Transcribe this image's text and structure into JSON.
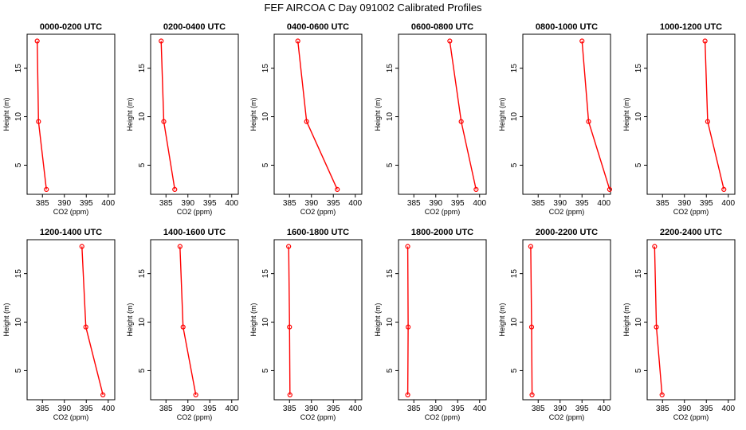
{
  "title": "FEF AIRCOA C  Day 091002  Calibrated Profiles",
  "chart_data": [
    {
      "type": "line",
      "title": "0000-0200 UTC",
      "xlabel": "CO2 (ppm)",
      "ylabel": "Height (m)",
      "xlim": [
        381.5,
        401.5
      ],
      "ylim": [
        2,
        18.5
      ],
      "xticks": [
        385,
        390,
        395,
        400
      ],
      "yticks": [
        5,
        10,
        15
      ],
      "series": [
        {
          "name": "profile",
          "x": [
            383.8,
            384.1,
            385.9
          ],
          "y": [
            17.8,
            9.5,
            2.5
          ]
        }
      ]
    },
    {
      "type": "line",
      "title": "0200-0400 UTC",
      "xlabel": "CO2 (ppm)",
      "ylabel": "Height (m)",
      "xlim": [
        381.5,
        401.5
      ],
      "ylim": [
        2,
        18.5
      ],
      "xticks": [
        385,
        390,
        395,
        400
      ],
      "yticks": [
        5,
        10,
        15
      ],
      "series": [
        {
          "name": "profile",
          "x": [
            383.9,
            384.5,
            387.0
          ],
          "y": [
            17.8,
            9.5,
            2.5
          ]
        }
      ]
    },
    {
      "type": "line",
      "title": "0400-0600 UTC",
      "xlabel": "CO2 (ppm)",
      "ylabel": "Height (m)",
      "xlim": [
        381.5,
        401.5
      ],
      "ylim": [
        2,
        18.5
      ],
      "xticks": [
        385,
        390,
        395,
        400
      ],
      "yticks": [
        5,
        10,
        15
      ],
      "series": [
        {
          "name": "profile",
          "x": [
            386.9,
            388.9,
            395.9
          ],
          "y": [
            17.8,
            9.5,
            2.5
          ]
        }
      ]
    },
    {
      "type": "line",
      "title": "0600-0800 UTC",
      "xlabel": "CO2 (ppm)",
      "ylabel": "Height (m)",
      "xlim": [
        381.5,
        401.5
      ],
      "ylim": [
        2,
        18.5
      ],
      "xticks": [
        385,
        390,
        395,
        400
      ],
      "yticks": [
        5,
        10,
        15
      ],
      "series": [
        {
          "name": "profile",
          "x": [
            393.2,
            395.8,
            399.2
          ],
          "y": [
            17.8,
            9.5,
            2.5
          ]
        }
      ]
    },
    {
      "type": "line",
      "title": "0800-1000 UTC",
      "xlabel": "CO2 (ppm)",
      "ylabel": "Height (m)",
      "xlim": [
        381.5,
        401.5
      ],
      "ylim": [
        2,
        18.5
      ],
      "xticks": [
        385,
        390,
        395,
        400
      ],
      "yticks": [
        5,
        10,
        15
      ],
      "series": [
        {
          "name": "profile",
          "x": [
            395.0,
            396.5,
            401.3
          ],
          "y": [
            17.8,
            9.5,
            2.5
          ]
        }
      ]
    },
    {
      "type": "line",
      "title": "1000-1200 UTC",
      "xlabel": "CO2 (ppm)",
      "ylabel": "Height (m)",
      "xlim": [
        381.5,
        401.5
      ],
      "ylim": [
        2,
        18.5
      ],
      "xticks": [
        385,
        390,
        395,
        400
      ],
      "yticks": [
        5,
        10,
        15
      ],
      "series": [
        {
          "name": "profile",
          "x": [
            394.7,
            395.3,
            399.0
          ],
          "y": [
            17.8,
            9.5,
            2.5
          ]
        }
      ]
    },
    {
      "type": "line",
      "title": "1200-1400 UTC",
      "xlabel": "CO2 (ppm)",
      "ylabel": "Height (m)",
      "xlim": [
        381.5,
        401.5
      ],
      "ylim": [
        2,
        18.5
      ],
      "xticks": [
        385,
        390,
        395,
        400
      ],
      "yticks": [
        5,
        10,
        15
      ],
      "series": [
        {
          "name": "profile",
          "x": [
            394.0,
            394.9,
            398.8
          ],
          "y": [
            17.8,
            9.5,
            2.5
          ]
        }
      ]
    },
    {
      "type": "line",
      "title": "1400-1600 UTC",
      "xlabel": "CO2 (ppm)",
      "ylabel": "Height (m)",
      "xlim": [
        381.5,
        401.5
      ],
      "ylim": [
        2,
        18.5
      ],
      "xticks": [
        385,
        390,
        395,
        400
      ],
      "yticks": [
        5,
        10,
        15
      ],
      "series": [
        {
          "name": "profile",
          "x": [
            388.2,
            388.9,
            391.8
          ],
          "y": [
            17.8,
            9.5,
            2.5
          ]
        }
      ]
    },
    {
      "type": "line",
      "title": "1600-1800 UTC",
      "xlabel": "CO2 (ppm)",
      "ylabel": "Height (m)",
      "xlim": [
        381.5,
        401.5
      ],
      "ylim": [
        2,
        18.5
      ],
      "xticks": [
        385,
        390,
        395,
        400
      ],
      "yticks": [
        5,
        10,
        15
      ],
      "series": [
        {
          "name": "profile",
          "x": [
            384.8,
            385.0,
            385.1
          ],
          "y": [
            17.8,
            9.5,
            2.5
          ]
        }
      ]
    },
    {
      "type": "line",
      "title": "1800-2000 UTC",
      "xlabel": "CO2 (ppm)",
      "ylabel": "Height (m)",
      "xlim": [
        381.5,
        401.5
      ],
      "ylim": [
        2,
        18.5
      ],
      "xticks": [
        385,
        390,
        395,
        400
      ],
      "yticks": [
        5,
        10,
        15
      ],
      "series": [
        {
          "name": "profile",
          "x": [
            383.6,
            383.7,
            383.6
          ],
          "y": [
            17.8,
            9.5,
            2.5
          ]
        }
      ]
    },
    {
      "type": "line",
      "title": "2000-2200 UTC",
      "xlabel": "CO2 (ppm)",
      "ylabel": "Height (m)",
      "xlim": [
        381.5,
        401.5
      ],
      "ylim": [
        2,
        18.5
      ],
      "xticks": [
        385,
        390,
        395,
        400
      ],
      "yticks": [
        5,
        10,
        15
      ],
      "series": [
        {
          "name": "profile",
          "x": [
            383.3,
            383.5,
            383.6
          ],
          "y": [
            17.8,
            9.5,
            2.5
          ]
        }
      ]
    },
    {
      "type": "line",
      "title": "2200-2400 UTC",
      "xlabel": "CO2 (ppm)",
      "ylabel": "Height (m)",
      "xlim": [
        381.5,
        401.5
      ],
      "ylim": [
        2,
        18.5
      ],
      "xticks": [
        385,
        390,
        395,
        400
      ],
      "yticks": [
        5,
        10,
        15
      ],
      "series": [
        {
          "name": "profile",
          "x": [
            383.2,
            383.6,
            384.9
          ],
          "y": [
            17.8,
            9.5,
            2.5
          ]
        }
      ]
    }
  ]
}
